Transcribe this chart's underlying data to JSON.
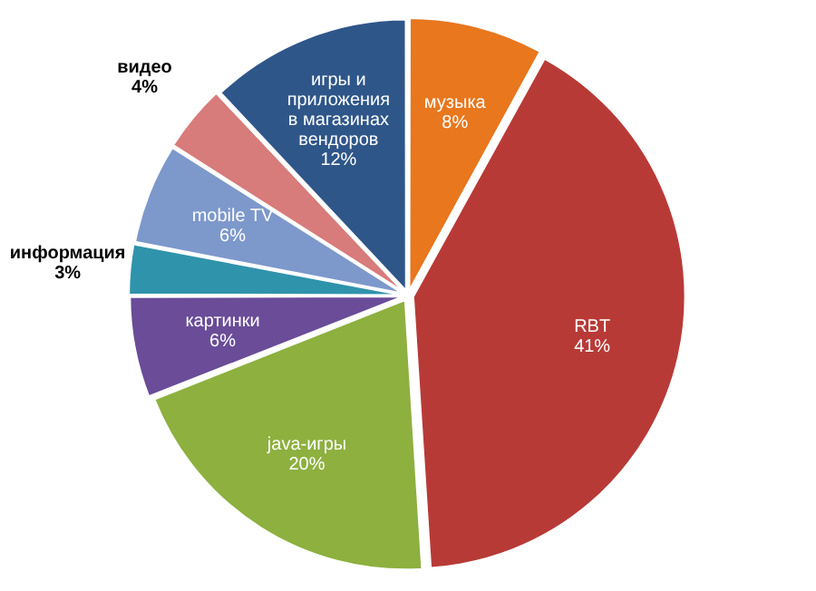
{
  "chart_data": {
    "type": "pie",
    "categories": [
      "музыка",
      "RBT",
      "java-игры",
      "картинки",
      "информация",
      "mobile TV",
      "видео",
      "игры и приложения в магазинах вендоров"
    ],
    "values": [
      8,
      41,
      20,
      6,
      3,
      6,
      4,
      12
    ],
    "value_labels": [
      "8%",
      "41%",
      "20%",
      "6%",
      "3%",
      "6%",
      "4%",
      "12%"
    ],
    "colors": [
      "#e8771e",
      "#b83a37",
      "#8db03f",
      "#6a4c98",
      "#2f93ab",
      "#7d98cb",
      "#d77b7b",
      "#2f5689"
    ],
    "legend": false
  }
}
